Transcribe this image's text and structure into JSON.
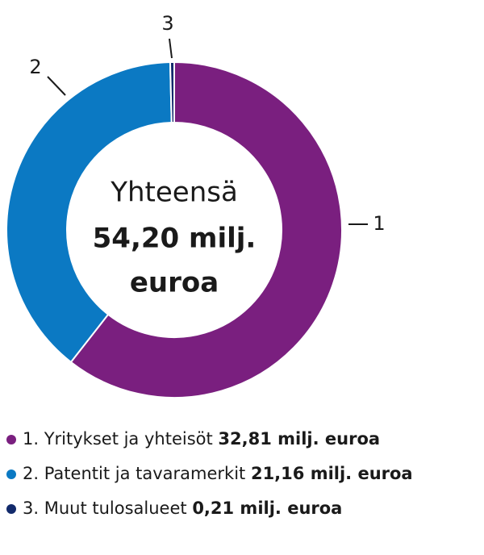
{
  "chart_data": {
    "type": "pie",
    "center_label": [
      "Yhteensä",
      "54,20 milj.",
      "euroa"
    ],
    "categories": [
      "1",
      "2",
      "3"
    ],
    "legend": [
      "1. Yritykset ja yhteisöt",
      "2. Patentit ja tavaramerkit",
      "3. Muut tulosalueet"
    ],
    "values": [
      32.81,
      21.16,
      0.21
    ],
    "value_labels": [
      "32,81 milj. euroa",
      "21,16 milj. euroa",
      "0,21 milj. euroa"
    ],
    "colors": [
      "#7a1f7f",
      "#0b79c3",
      "#122a6b"
    ]
  }
}
